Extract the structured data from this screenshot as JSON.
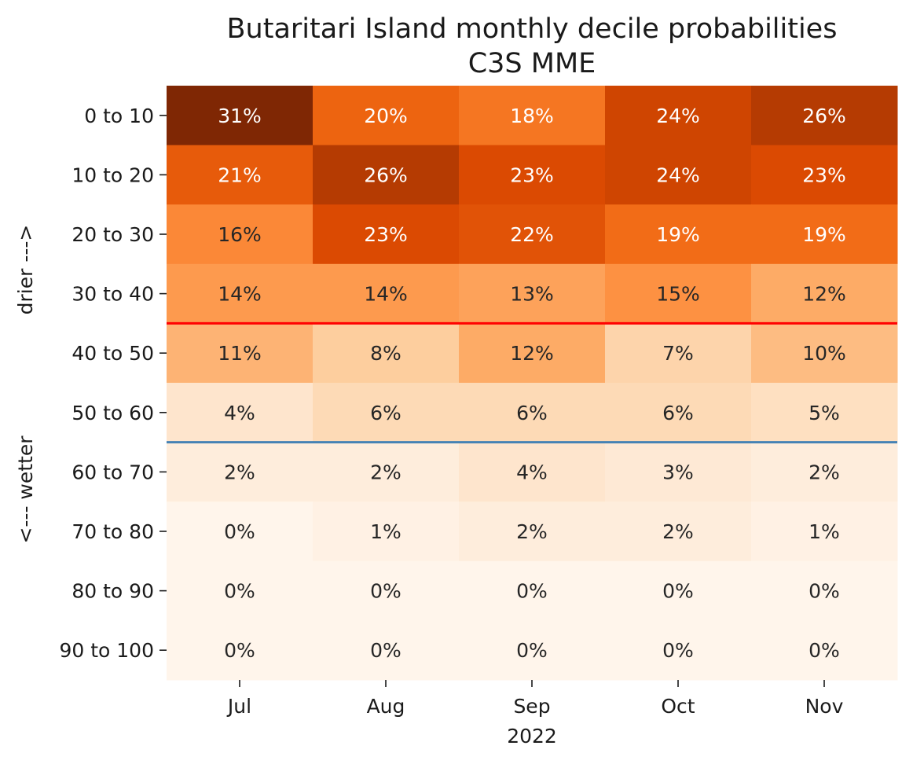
{
  "chart_data": {
    "type": "heatmap",
    "title": "Butaritari Island monthly decile probabilities",
    "subtitle": "C3S MME",
    "xlabel": "2022",
    "ylabel_top": "drier --->",
    "ylabel_bottom": "<--- wetter",
    "columns": [
      "Jul",
      "Aug",
      "Sep",
      "Oct",
      "Nov"
    ],
    "rows": [
      "0 to 10",
      "10 to 20",
      "20 to 30",
      "30 to 40",
      "40 to 50",
      "50 to 60",
      "60 to 70",
      "70 to 80",
      "80 to 90",
      "90 to 100"
    ],
    "values": [
      [
        31,
        20,
        18,
        24,
        26
      ],
      [
        21,
        26,
        23,
        24,
        23
      ],
      [
        16,
        23,
        22,
        19,
        19
      ],
      [
        14,
        14,
        13,
        15,
        12
      ],
      [
        11,
        8,
        12,
        7,
        10
      ],
      [
        4,
        6,
        6,
        6,
        5
      ],
      [
        2,
        2,
        4,
        3,
        2
      ],
      [
        0,
        1,
        2,
        2,
        1
      ],
      [
        0,
        0,
        0,
        0,
        0
      ],
      [
        0,
        0,
        0,
        0,
        0
      ]
    ],
    "value_format": "percent",
    "colormap": "Oranges",
    "vmin": 0,
    "vmax": 31,
    "divider_lines": [
      {
        "after_row": "30 to 40",
        "color": "#ff0000"
      },
      {
        "after_row": "50 to 60",
        "color": "#4682b4"
      }
    ]
  }
}
